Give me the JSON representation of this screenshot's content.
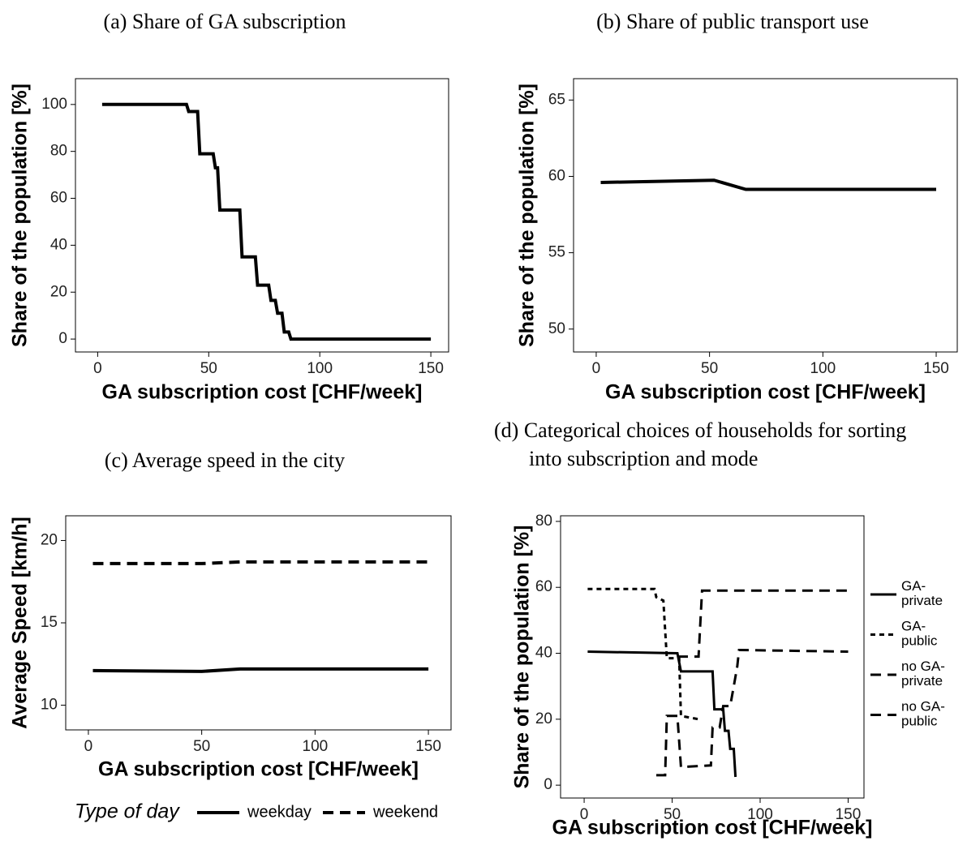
{
  "chart_data": [
    {
      "type": "line",
      "title": "(a) Share of GA subscription",
      "x_label": "GA subscription cost [CHF/week]",
      "y_label": "Share of the population [%]",
      "xlim": [
        -10,
        158
      ],
      "xticks": [
        0,
        50,
        100,
        150
      ],
      "ylim": [
        -5.5,
        111
      ],
      "yticks": [
        0,
        20,
        40,
        60,
        80,
        100
      ],
      "series": [
        {
          "color": "#000000",
          "linestyle": "solid",
          "x": [
            2,
            40,
            41,
            45,
            46,
            52,
            53,
            54,
            55,
            64,
            65,
            71,
            72,
            77,
            78,
            80,
            81,
            83,
            84,
            86,
            87,
            150
          ],
          "values": [
            100,
            100,
            97,
            97,
            79,
            79,
            73,
            73,
            55,
            55,
            35,
            35,
            23,
            23,
            16.5,
            16.5,
            11,
            11,
            3,
            3,
            0,
            0
          ]
        }
      ]
    },
    {
      "type": "line",
      "title": "(b) Share of public transport use",
      "x_label": "GA subscription cost [CHF/week]",
      "y_label": "Share of the population [%]",
      "xlim": [
        -10,
        159.3
      ],
      "xticks": [
        0,
        50,
        100,
        150
      ],
      "ylim": [
        48.5,
        66.4
      ],
      "yticks": [
        50,
        55,
        60,
        65
      ],
      "series": [
        {
          "color": "#000000",
          "linestyle": "solid",
          "x": [
            2,
            52,
            66,
            150
          ],
          "values": [
            59.6,
            59.75,
            59.15,
            59.15
          ]
        }
      ]
    },
    {
      "type": "line",
      "title": "(c) Average speed in the city",
      "x_label": "GA subscription cost [CHF/week]",
      "y_label": "Average Speed [km/h]",
      "xlim": [
        -10,
        160
      ],
      "xticks": [
        0,
        50,
        100,
        150
      ],
      "ylim": [
        8.5,
        21.5
      ],
      "yticks": [
        10,
        15,
        20
      ],
      "legend": "bottom",
      "legend_title": "Type of day",
      "series": [
        {
          "name": "weekday",
          "color": "#000000",
          "linestyle": "solid",
          "x": [
            2,
            50,
            67,
            150
          ],
          "values": [
            12.1,
            12.05,
            12.2,
            12.2
          ]
        },
        {
          "name": "weekend",
          "color": "#000000",
          "linestyle": "dashed",
          "x": [
            2,
            50,
            67,
            150
          ],
          "values": [
            18.6,
            18.6,
            18.7,
            18.7
          ]
        }
      ]
    },
    {
      "type": "line",
      "title": [
        "(d) Categorical choices of households for sorting",
        "into subscription and mode"
      ],
      "x_label": "GA subscription cost [CHF/week]",
      "y_label": "Share of the population [%]",
      "xlim": [
        -13.4,
        159
      ],
      "xticks": [
        0,
        50,
        100,
        150
      ],
      "ylim": [
        -3.9,
        81.7
      ],
      "yticks": [
        0,
        20,
        40,
        60,
        80
      ],
      "legend": "right",
      "series": [
        {
          "name": "GA-private",
          "color": "#000000",
          "linestyle": "solid",
          "x": [
            2,
            53,
            55,
            73,
            74,
            79,
            80,
            82,
            83,
            85,
            86
          ],
          "values": [
            40.5,
            40,
            34.5,
            34.5,
            23,
            23,
            16.5,
            16.5,
            11,
            11,
            2.5
          ]
        },
        {
          "name": "GA-public",
          "color": "#000000",
          "linestyle": "dotted",
          "x": [
            2,
            40,
            41,
            45,
            47,
            54,
            55,
            65
          ],
          "values": [
            59.5,
            59.5,
            57,
            56,
            38.5,
            38.5,
            21,
            20
          ]
        },
        {
          "name": "no GA-private",
          "color": "#000000",
          "linestyle": "dashed",
          "x": [
            41,
            46,
            47,
            53,
            55,
            72,
            73,
            77,
            79,
            83,
            85,
            87,
            88,
            150
          ],
          "values": [
            3,
            3,
            21,
            21,
            5.5,
            6,
            17.5,
            17.5,
            24,
            24,
            30,
            36,
            41,
            40.5
          ]
        },
        {
          "name": "no GA-public",
          "color": "#000000",
          "linestyle": "dashed",
          "x": [
            53,
            65,
            67,
            150
          ],
          "values": [
            39,
            39,
            59,
            59
          ]
        }
      ]
    }
  ]
}
